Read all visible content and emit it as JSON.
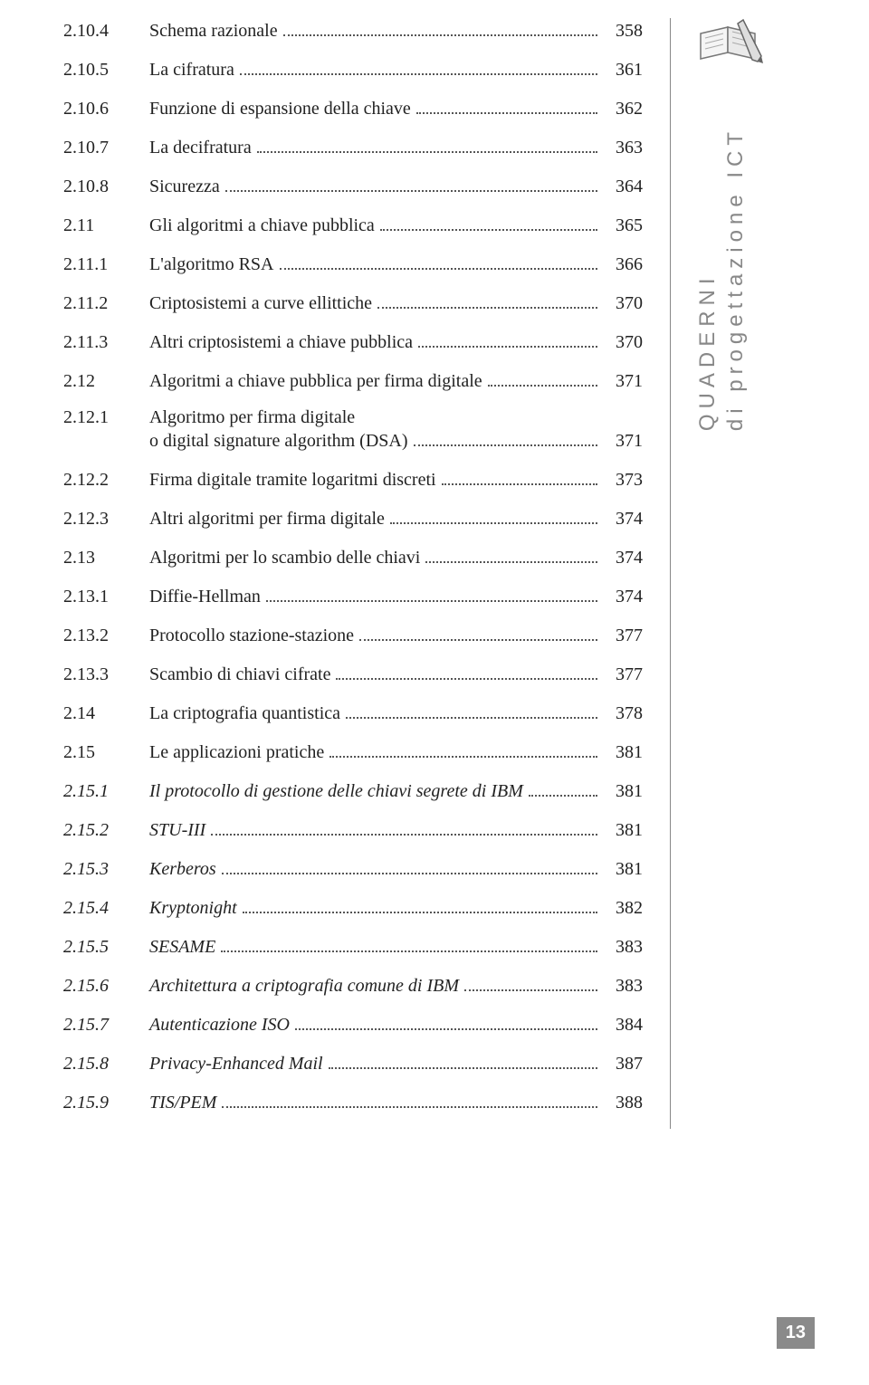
{
  "side": {
    "line1": "QUADERNI",
    "line2": "di progettazione ICT"
  },
  "page_number": "13",
  "entries": [
    {
      "num": "2.10.4",
      "title": "Schema razionale",
      "page": "358",
      "italic": false
    },
    {
      "num": "2.10.5",
      "title": "La cifratura",
      "page": "361",
      "italic": false
    },
    {
      "num": "2.10.6",
      "title": "Funzione di espansione della chiave",
      "page": "362",
      "italic": false
    },
    {
      "num": "2.10.7",
      "title": "La decifratura",
      "page": "363",
      "italic": false
    },
    {
      "num": "2.10.8",
      "title": "Sicurezza",
      "page": "364",
      "italic": false
    },
    {
      "num": "2.11",
      "title": "Gli algoritmi a chiave pubblica",
      "page": "365",
      "italic": false
    },
    {
      "num": "2.11.1",
      "title": "L'algoritmo RSA",
      "page": "366",
      "italic": false
    },
    {
      "num": "2.11.2",
      "title": "Criptosistemi a curve ellittiche",
      "page": "370",
      "italic": false
    },
    {
      "num": "2.11.3",
      "title": "Altri criptosistemi a chiave pubblica",
      "page": "370",
      "italic": false
    },
    {
      "num": "2.12",
      "title": "Algoritmi a chiave pubblica per firma digitale",
      "page": "371",
      "italic": false
    },
    {
      "num": "2.12.1",
      "title_line1": "Algoritmo per firma digitale",
      "title_line2": "o digital signature algorithm (DSA)",
      "page": "371",
      "italic": false,
      "multiline": true
    },
    {
      "num": "2.12.2",
      "title": "Firma digitale tramite logaritmi discreti",
      "page": "373",
      "italic": false
    },
    {
      "num": "2.12.3",
      "title": "Altri algoritmi per firma digitale",
      "page": "374",
      "italic": false
    },
    {
      "num": "2.13",
      "title": "Algoritmi per lo scambio delle chiavi",
      "page": "374",
      "italic": false
    },
    {
      "num": "2.13.1",
      "title": "Diffie-Hellman",
      "page": "374",
      "italic": false
    },
    {
      "num": "2.13.2",
      "title": "Protocollo stazione-stazione",
      "page": "377",
      "italic": false
    },
    {
      "num": "2.13.3",
      "title": "Scambio di chiavi cifrate",
      "page": "377",
      "italic": false
    },
    {
      "num": "2.14",
      "title": "La criptografia quantistica",
      "page": "378",
      "italic": false
    },
    {
      "num": "2.15",
      "title": "Le applicazioni pratiche",
      "page": "381",
      "italic": false
    },
    {
      "num": "2.15.1",
      "title": "Il protocollo di gestione delle chiavi segrete di IBM",
      "page": "381",
      "italic": true
    },
    {
      "num": "2.15.2",
      "title": "STU-III",
      "page": "381",
      "italic": true
    },
    {
      "num": "2.15.3",
      "title": "Kerberos",
      "page": "381",
      "italic": true
    },
    {
      "num": "2.15.4",
      "title": "Kryptonight",
      "page": "382",
      "italic": true
    },
    {
      "num": "2.15.5",
      "title": "SESAME",
      "page": "383",
      "italic": true
    },
    {
      "num": "2.15.6",
      "title": "Architettura a criptografia comune di IBM",
      "page": "383",
      "italic": true
    },
    {
      "num": "2.15.7",
      "title": "Autenticazione ISO",
      "page": "384",
      "italic": true
    },
    {
      "num": "2.15.8",
      "title": "Privacy-Enhanced Mail",
      "page": "387",
      "italic": true
    },
    {
      "num": "2.15.9",
      "title": "TIS/PEM",
      "page": "388",
      "italic": true
    }
  ]
}
